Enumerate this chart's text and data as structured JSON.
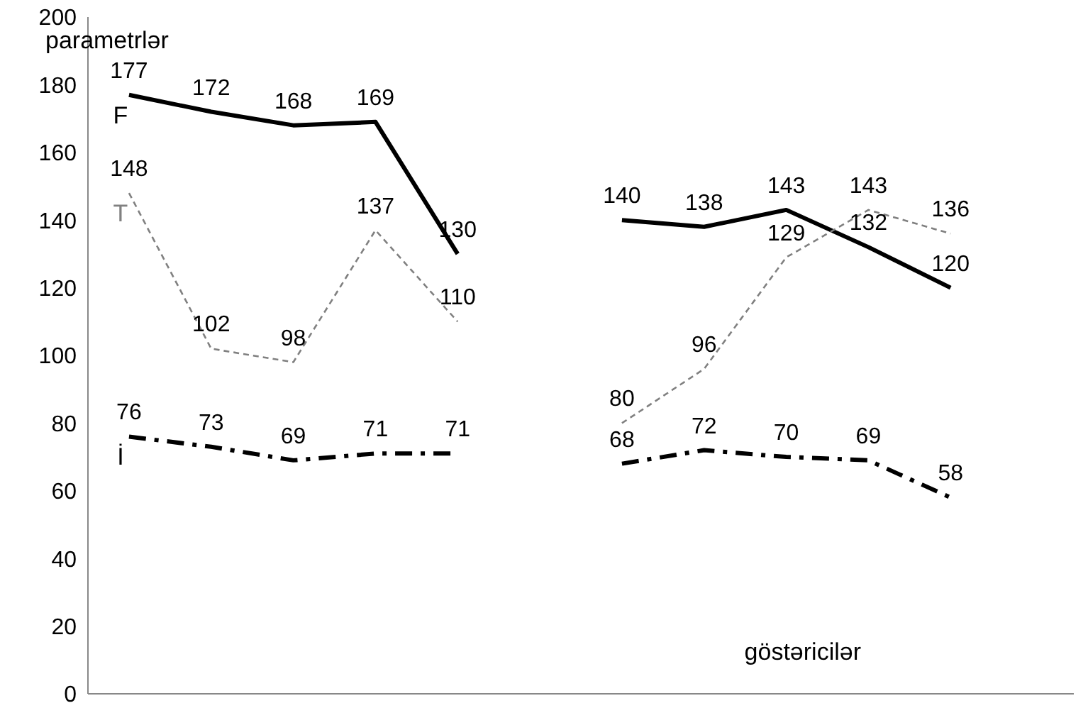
{
  "chart_data": {
    "type": "line",
    "xlabel": "göstəricilər",
    "ylabel": "parametrlər",
    "categories": [
      null,
      null,
      null,
      null,
      null,
      null,
      null,
      null,
      null,
      null,
      null,
      null
    ],
    "series": [
      {
        "name": "F",
        "color": "#000000",
        "line_style": "solid",
        "values": [
          177,
          172,
          168,
          169,
          130,
          null,
          140,
          138,
          143,
          132,
          120,
          null
        ]
      },
      {
        "name": "T",
        "color": "#808080",
        "line_style": "dotted",
        "values": [
          148,
          102,
          98,
          137,
          110,
          null,
          80,
          96,
          129,
          143,
          136,
          null
        ]
      },
      {
        "name": "İ",
        "color": "#000000",
        "line_style": "dashed",
        "values": [
          76,
          73,
          69,
          71,
          71,
          null,
          68,
          72,
          70,
          69,
          58,
          null
        ]
      }
    ],
    "ylim": [
      0,
      200
    ],
    "yticks": [
      0,
      20,
      40,
      60,
      80,
      100,
      120,
      140,
      160,
      180,
      200
    ],
    "grid": false,
    "legend": false,
    "marker": "none",
    "data_labels": true
  }
}
